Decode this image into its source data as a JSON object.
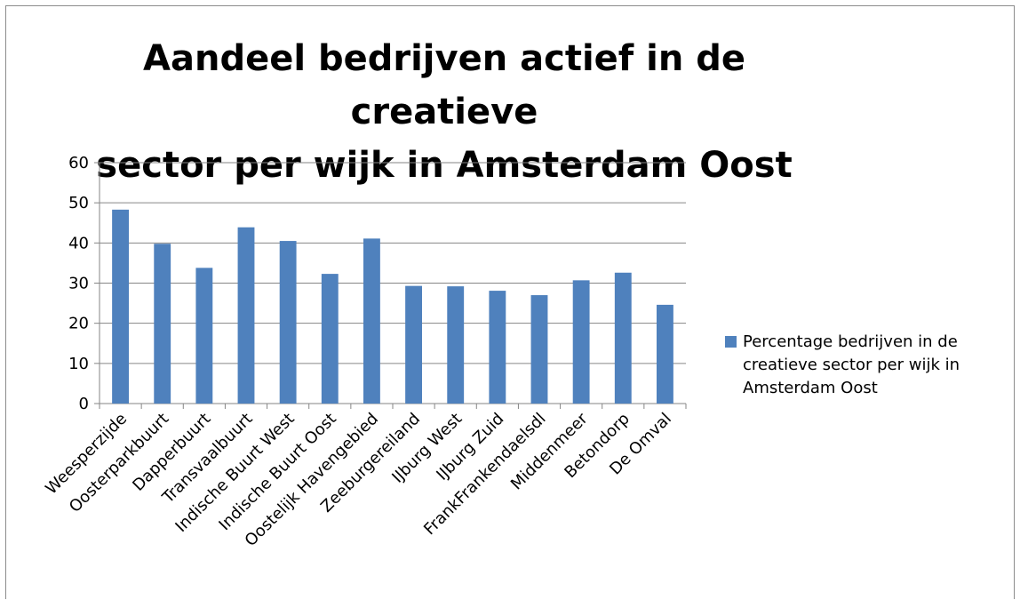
{
  "chart_data": {
    "type": "bar",
    "title_line1": "Aandeel bedrijven actief in de creatieve",
    "title_line2": "sector per wijk in Amsterdam Oost",
    "categories": [
      "Weesperzijde",
      "Oosterparkbuurt",
      "Dapperbuurt",
      "Transvaalbuurt",
      "Indische Buurt West",
      "Indische Buurt Oost",
      "Oostelijk Havengebied",
      "Zeeburgereiland",
      "IJburg West",
      "IJburg Zuid",
      "FrankFrankendaelsdl",
      "Middenmeer",
      "Betondorp",
      "De Omval"
    ],
    "series": [
      {
        "name": "Percentage bedrijven in de creatieve sector per wijk in Amsterdam Oost",
        "values": [
          48.3,
          39.8,
          33.8,
          43.9,
          40.5,
          32.3,
          41.1,
          29.3,
          29.2,
          28.1,
          27.0,
          30.7,
          32.6,
          24.6
        ]
      }
    ],
    "yticks": [
      "0",
      "10",
      "20",
      "30",
      "40",
      "50",
      "60"
    ],
    "ylim": [
      0,
      60
    ],
    "grid": true,
    "legend_position": "right",
    "color": "#4f81bd"
  }
}
